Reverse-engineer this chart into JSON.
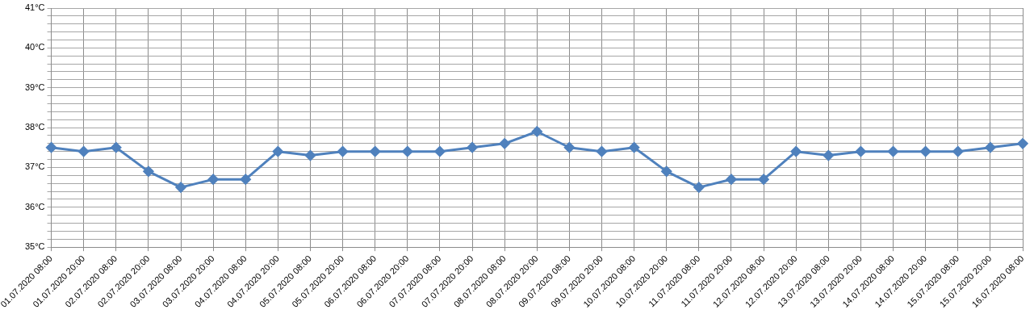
{
  "chart_data": {
    "type": "line",
    "categories": [
      "01.07.2020 08:00",
      "01.07.2020 20:00",
      "02.07.2020 08:00",
      "02.07.2020 20:00",
      "03.07.2020 08:00",
      "03.07.2020 20:00",
      "04.07.2020 08:00",
      "04.07.2020 20:00",
      "05.07.2020 08:00",
      "05.07.2020 20:00",
      "06.07.2020 08:00",
      "06.07.2020 20:00",
      "07.07.2020 08:00",
      "07.07.2020 20:00",
      "08.07.2020 08:00",
      "08.07.2020 20:00",
      "09.07.2020 08:00",
      "09.07.2020 20:00",
      "10.07.2020 08:00",
      "10.07.2020 20:00",
      "11.07.2020 08:00",
      "11.07.2020 20:00",
      "12.07.2020 08:00",
      "12.07.2020 20:00",
      "13.07.2020 08:00",
      "13.07.2020 20:00",
      "14.07.2020 08:00",
      "14.07.2020 20:00",
      "15.07.2020 08:00",
      "15.07.2020 20:00",
      "16.07.2020 08:00"
    ],
    "series": [
      {
        "color": "#4f81bd",
        "values": [
          37.5,
          37.4,
          37.5,
          36.9,
          36.5,
          36.7,
          36.7,
          37.4,
          37.3,
          37.4,
          37.4,
          37.4,
          37.4,
          37.5,
          37.6,
          37.9,
          37.5,
          37.4,
          37.5,
          36.9,
          36.5,
          36.7,
          36.7,
          37.4,
          37.3,
          37.4,
          37.4,
          37.4,
          37.4,
          37.5,
          37.6
        ]
      }
    ],
    "ylim": [
      35,
      41
    ],
    "yticks": [
      {
        "value": 35,
        "label": "35°C"
      },
      {
        "value": 35.2,
        "label": null
      },
      {
        "value": 35.4,
        "label": null
      },
      {
        "value": 35.6,
        "label": null
      },
      {
        "value": 35.8,
        "label": null
      },
      {
        "value": 36,
        "label": "36°C"
      },
      {
        "value": 36.2,
        "label": null
      },
      {
        "value": 36.4,
        "label": null
      },
      {
        "value": 36.6,
        "label": null
      },
      {
        "value": 36.8,
        "label": null
      },
      {
        "value": 37,
        "label": "37°C"
      },
      {
        "value": 37.2,
        "label": null
      },
      {
        "value": 37.4,
        "label": null
      },
      {
        "value": 37.6,
        "label": null
      },
      {
        "value": 37.8,
        "label": null
      },
      {
        "value": 38,
        "label": "38°C"
      },
      {
        "value": 38.2,
        "label": null
      },
      {
        "value": 38.4,
        "label": null
      },
      {
        "value": 38.6,
        "label": null
      },
      {
        "value": 38.8,
        "label": null
      },
      {
        "value": 39,
        "label": "39°C"
      },
      {
        "value": 39.2,
        "label": null
      },
      {
        "value": 39.4,
        "label": null
      },
      {
        "value": 39.6,
        "label": null
      },
      {
        "value": 39.8,
        "label": null
      },
      {
        "value": 40,
        "label": "40°C"
      },
      {
        "value": 40.2,
        "label": null
      },
      {
        "value": 40.4,
        "label": null
      },
      {
        "value": 40.6,
        "label": null
      },
      {
        "value": 40.8,
        "label": null
      },
      {
        "value": 41,
        "label": "41°C"
      }
    ],
    "grid": true,
    "legend": false,
    "marker": "diamond",
    "line_style": "solid"
  }
}
